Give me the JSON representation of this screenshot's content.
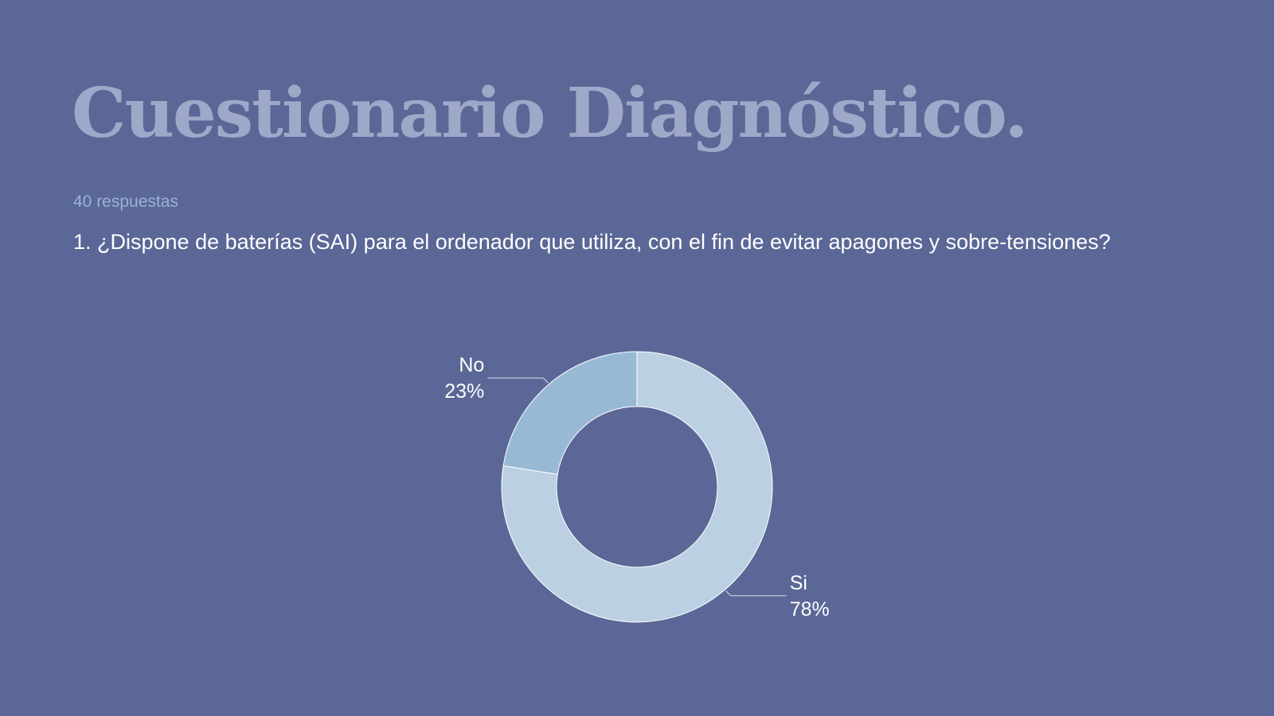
{
  "slide": {
    "title": "Cuestionario Diagnóstico.",
    "responses": "40 respuestas",
    "question": "1. ¿Dispone de baterías (SAI) para el ordenador que utiliza, con el fin de evitar apagones y sobre-tensiones?"
  },
  "colors": {
    "background": "#5b6796",
    "title": "#9ea9c9",
    "subtitle": "#9ab3d6",
    "text": "#ffffff",
    "leader_line": "#c6d3e5"
  },
  "chart_data": {
    "type": "pie",
    "donut": true,
    "slices": [
      {
        "label": "Si",
        "value": 77.5,
        "display": "78%",
        "color": "#bcd0e3"
      },
      {
        "label": "No",
        "value": 22.5,
        "display": "23%",
        "color": "#98b9d3"
      }
    ]
  }
}
